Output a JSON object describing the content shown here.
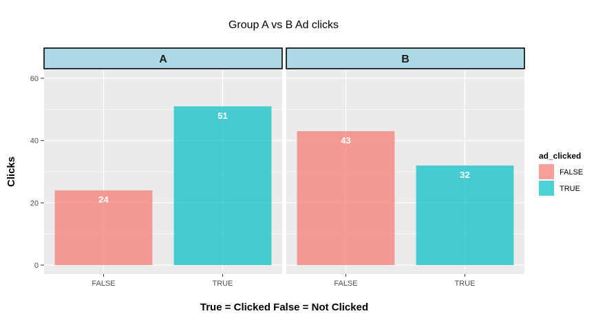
{
  "chart_data": {
    "type": "bar",
    "title": "Group A vs B Ad clicks",
    "xlabel": "True = Clicked False = Not Clicked",
    "ylabel": "Clicks",
    "ylim": [
      0,
      62
    ],
    "yticks": [
      0,
      20,
      40,
      60
    ],
    "categories": [
      "FALSE",
      "TRUE"
    ],
    "facets": [
      {
        "label": "A",
        "values": [
          24,
          51
        ]
      },
      {
        "label": "B",
        "values": [
          43,
          32
        ]
      }
    ],
    "legend": {
      "title": "ad_clicked",
      "placement": "right",
      "entries": [
        {
          "label": "FALSE",
          "color": "#F8766D"
        },
        {
          "label": "TRUE",
          "color": "#00BFC4"
        }
      ]
    },
    "panel_background": "#EBEBEB",
    "strip_background": "#ADD8E6",
    "grid": true
  }
}
